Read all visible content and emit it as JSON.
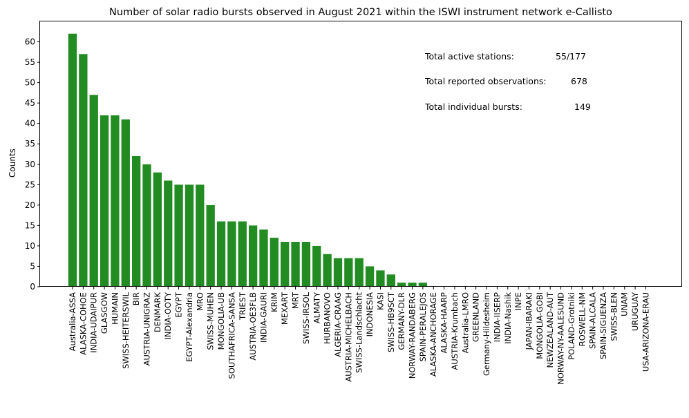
{
  "chart_data": {
    "type": "bar",
    "title": "Number of solar radio bursts observed in August 2021 within the ISWI instrument network e-Callisto",
    "xlabel": "",
    "ylabel": "Counts",
    "ylim": [
      0,
      65
    ],
    "yticks": [
      0,
      5,
      10,
      15,
      20,
      25,
      30,
      35,
      40,
      45,
      50,
      55,
      60
    ],
    "grid": false,
    "bar_color": "#228b22",
    "categories": [
      "Australia-ASSA",
      "ALASKA-COHOE",
      "INDIA-UDAIPUR",
      "GLASGOW",
      "HUMAIN",
      "SWISS-HEITERSWIL",
      "BIR",
      "AUSTRIA-UNIGRAZ",
      "DENMARK",
      "INDIA-OOTY",
      "EGYPT",
      "EGYPT-Alexandria",
      "MRO",
      "SWISS-MUHEN",
      "MONGOLIA-UB",
      "SOUTHAFRICA-SANSA",
      "TRIEST",
      "AUSTRIA-OE3FLB",
      "INDIA-GAURI",
      "KRIM",
      "MEXART",
      "MRT",
      "SWISS-IRSOL",
      "ALMATY",
      "HURBANOVO",
      "ALGERIA-CRAAG",
      "AUSTRIA-MICHELBACH",
      "SWISS-Landschlacht",
      "INDONESIA",
      "KASI",
      "SWISS-HB9SCT",
      "GERMANY-DLR",
      "NORWAY-RANDABERG",
      "SPAIN-PERALEJOS",
      "ALASKA-ANCHORAGE",
      "ALASKA-HAARP",
      "AUSTRIA-Krumbach",
      "Australia-LMRO",
      "GREENLAND",
      "Germany-Hildesheim",
      "INDIA-IISERP",
      "INDIA-Nashik",
      "INPE",
      "JAPAN-IBARAKI",
      "MONGOLIA-GOBI",
      "NEWZEALAND-AUT",
      "NORWAY-NY-AALESUND",
      "POLAND-Grotniki",
      "ROSWELL-NM",
      "SPAIN-ALCALA",
      "SPAIN-SIGUENZA",
      "SWISS-BLEN",
      "UNAM",
      "URUGUAY",
      "USA-ARIZONA-ERAU"
    ],
    "values": [
      62,
      57,
      47,
      42,
      42,
      41,
      32,
      30,
      28,
      26,
      25,
      25,
      25,
      20,
      16,
      16,
      16,
      15,
      14,
      12,
      11,
      11,
      11,
      10,
      8,
      7,
      7,
      7,
      5,
      4,
      3,
      1,
      1,
      1,
      0,
      0,
      0,
      0,
      0,
      0,
      0,
      0,
      0,
      0,
      0,
      0,
      0,
      0,
      0,
      0,
      0,
      0,
      0,
      0,
      0
    ]
  },
  "annotations": [
    {
      "label": "Total active stations:",
      "value": "55/177"
    },
    {
      "label": "Total reported observations:",
      "value": "678"
    },
    {
      "label": "Total individual bursts:",
      "value": "149"
    }
  ]
}
